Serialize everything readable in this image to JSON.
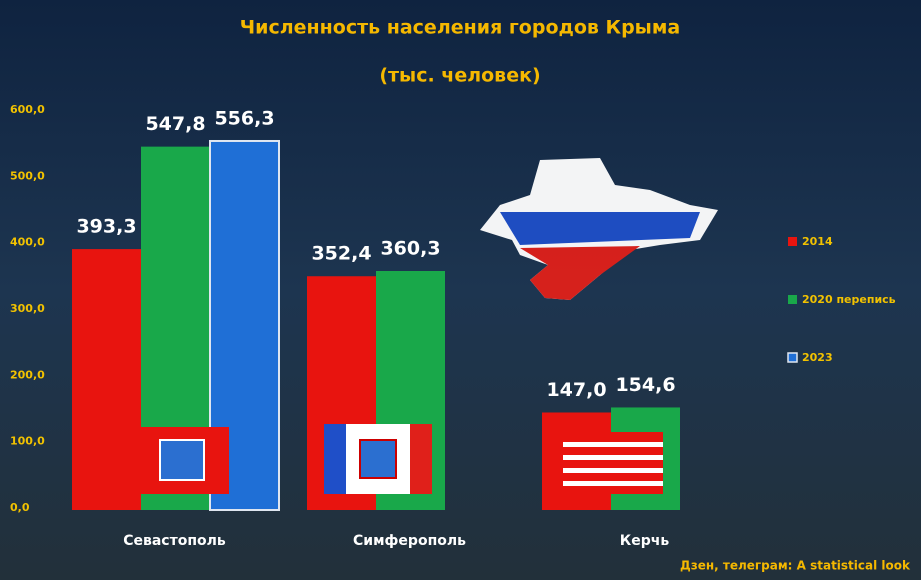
{
  "chart_data": {
    "type": "bar",
    "title": "Численность населения городов Крыма",
    "subtitle": "(тыс. человек)",
    "source": "Дзен, телеграм: A statistical look",
    "categories": [
      "Севастополь",
      "Симферополь",
      "Керчь"
    ],
    "series": [
      {
        "name": "2014",
        "color": "#e8140f",
        "values": [
          393.3,
          352.4,
          147.0
        ],
        "value_labels": [
          "393,3",
          "352,4",
          "147,0"
        ]
      },
      {
        "name": "2020 перепись",
        "color": "#19a84a",
        "values": [
          547.8,
          360.3,
          154.6
        ],
        "value_labels": [
          "547,8",
          "360,3",
          "154,6"
        ]
      },
      {
        "name": "2023",
        "color": "#1f6fd6",
        "values": [
          556.3,
          null,
          null
        ],
        "value_labels": [
          "556,3",
          null,
          null
        ]
      }
    ],
    "ylim": [
      0,
      600
    ],
    "yticks": [
      {
        "value": 0,
        "label": "0,0"
      },
      {
        "value": 100,
        "label": "100,0"
      },
      {
        "value": 200,
        "label": "200,0"
      },
      {
        "value": 300,
        "label": "300,0"
      },
      {
        "value": 400,
        "label": "400,0"
      },
      {
        "value": 500,
        "label": "500,0"
      },
      {
        "value": 600,
        "label": "600,0"
      }
    ],
    "grid": false,
    "legend": "right"
  }
}
